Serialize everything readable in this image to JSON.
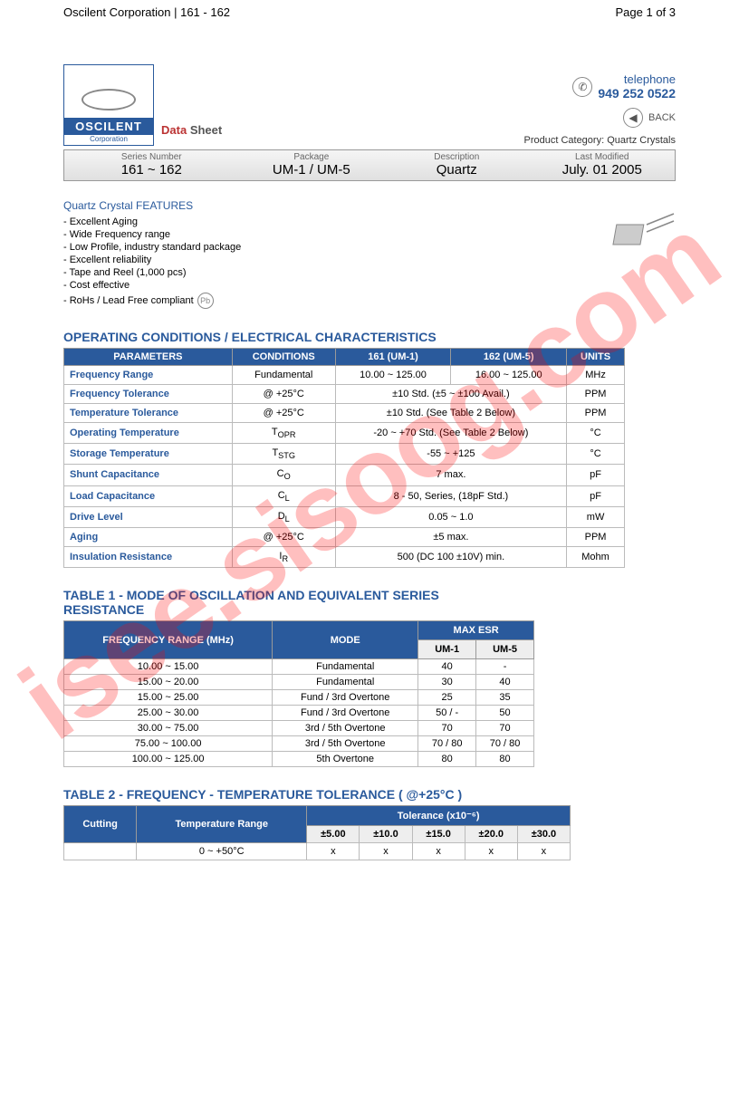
{
  "header": {
    "left": "Oscilent Corporation | 161 - 162",
    "right": "Page 1 of 3"
  },
  "watermark": "isee.sisoog.com",
  "logo": {
    "brand": "OSCILENT",
    "sub": "Corporation"
  },
  "datasheet": {
    "d": "Data",
    "s": "Sheet"
  },
  "contact": {
    "tel_label": "telephone",
    "tel_num": "949 252 0522",
    "back": "BACK",
    "prod_cat_label": "Product Category:",
    "prod_cat_value": "Quartz Crystals"
  },
  "series": {
    "headers": [
      "Series Number",
      "Package",
      "Description",
      "Last Modified"
    ],
    "values": [
      "161 ~ 162",
      "UM-1 / UM-5",
      "Quartz",
      "July. 01 2005"
    ]
  },
  "features": {
    "title": "Quartz Crystal FEATURES",
    "items": [
      "- Excellent Aging",
      "- Wide Frequency range",
      "- Low Profile, industry standard package",
      "- Excellent reliability",
      "- Tape and Reel (1,000 pcs)",
      "- Cost effective",
      "- RoHs / Lead Free compliant"
    ]
  },
  "operating": {
    "title": "OPERATING CONDITIONS / ELECTRICAL CHARACTERISTICS",
    "headers": [
      "PARAMETERS",
      "CONDITIONS",
      "161 (UM-1)",
      "162 (UM-5)",
      "UNITS"
    ],
    "rows": [
      {
        "param": "Frequency Range",
        "cond": "Fundamental",
        "v1": "10.00 ~ 125.00",
        "v2": "16.00 ~ 125.00",
        "unit": "MHz",
        "span": false
      },
      {
        "param": "Frequency Tolerance",
        "cond": "@ +25°C",
        "val": "±10 Std. (±5 ~ ±100 Avail.)",
        "unit": "PPM",
        "span": true
      },
      {
        "param": "Temperature Tolerance",
        "cond": "@ +25°C",
        "val": "±10 Std. (See Table 2 Below)",
        "unit": "PPM",
        "span": true
      },
      {
        "param": "Operating Temperature",
        "cond": "T_OPR",
        "val": "-20 ~ +70 Std. (See Table 2 Below)",
        "unit": "°C",
        "span": true
      },
      {
        "param": "Storage Temperature",
        "cond": "T_STG",
        "val": "-55 ~ +125",
        "unit": "°C",
        "span": true
      },
      {
        "param": "Shunt Capacitance",
        "cond": "C_O",
        "val": "7 max.",
        "unit": "pF",
        "span": true
      },
      {
        "param": "Load Capacitance",
        "cond": "C_L",
        "val": "8 - 50, Series, (18pF Std.)",
        "unit": "pF",
        "span": true
      },
      {
        "param": "Drive Level",
        "cond": "D_L",
        "val": "0.05 ~ 1.0",
        "unit": "mW",
        "span": true
      },
      {
        "param": "Aging",
        "cond": "@ +25°C",
        "val": "±5 max.",
        "unit": "PPM",
        "span": true
      },
      {
        "param": "Insulation Resistance",
        "cond": "I_R",
        "val": "500 (DC 100 ±10V) min.",
        "unit": "Mohm",
        "span": true
      }
    ]
  },
  "table1": {
    "title": "TABLE 1 - MODE OF OSCILLATION AND EQUIVALENT SERIES RESISTANCE",
    "h_freq": "FREQUENCY RANGE (MHz)",
    "h_mode": "MODE",
    "h_esr": "MAX ESR",
    "h_um1": "UM-1",
    "h_um5": "UM-5",
    "rows": [
      [
        "10.00 ~ 15.00",
        "Fundamental",
        "40",
        "-"
      ],
      [
        "15.00 ~ 20.00",
        "Fundamental",
        "30",
        "40"
      ],
      [
        "15.00 ~ 25.00",
        "Fund / 3rd Overtone",
        "25",
        "35"
      ],
      [
        "25.00 ~ 30.00",
        "Fund / 3rd Overtone",
        "50 / -",
        "50"
      ],
      [
        "30.00 ~ 75.00",
        "3rd / 5th Overtone",
        "70",
        "70"
      ],
      [
        "75.00 ~ 100.00",
        "3rd / 5th Overtone",
        "70 / 80",
        "70 / 80"
      ],
      [
        "100.00 ~ 125.00",
        "5th Overtone",
        "80",
        "80"
      ]
    ]
  },
  "table2": {
    "title": "TABLE 2 -  FREQUENCY - TEMPERATURE TOLERANCE ( @+25°C )",
    "h_cut": "Cutting",
    "h_temp": "Temperature Range",
    "h_tol": "Tolerance (x10⁻⁶)",
    "tol_cols": [
      "±5.00",
      "±10.0",
      "±15.0",
      "±20.0",
      "±30.0"
    ],
    "rows": [
      [
        "",
        "0 ~ +50°C",
        "x",
        "x",
        "x",
        "x",
        "x"
      ]
    ]
  }
}
